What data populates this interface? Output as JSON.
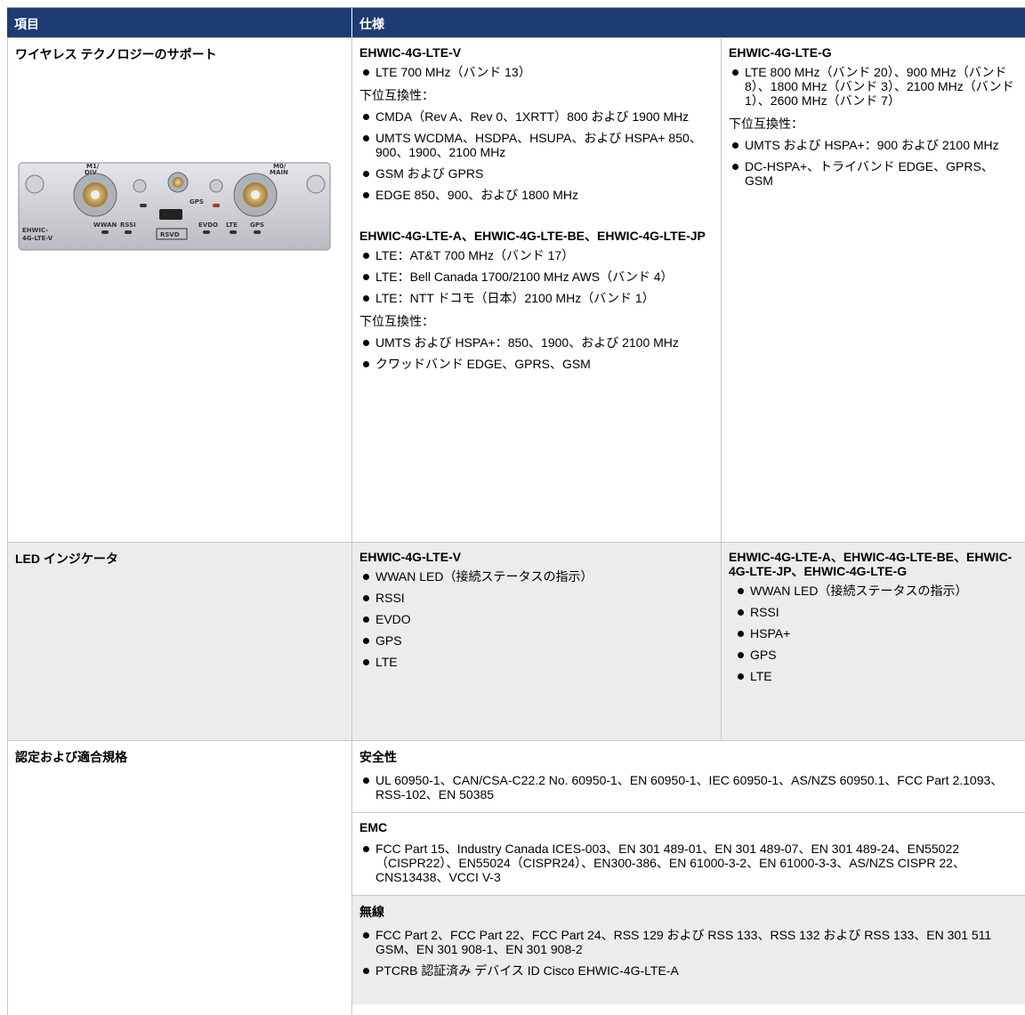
{
  "header": {
    "item": "項目",
    "spec": "仕様"
  },
  "rows": [
    {
      "item": "ワイヤレス テクノロジーのサポート",
      "image_labels": [
        "M1/",
        "DIV",
        "GPS",
        "M0/",
        "MAIN",
        "EHWIC-",
        "4G-LTE-V",
        "WWAN",
        "RSSI",
        "RSVD",
        "EVDO",
        "LTE",
        "GPS"
      ],
      "columns": [
        {
          "models": [
            {
              "name": "EHWIC-4G-LTE-V",
              "support": [
                "LTE 700 MHz（バンド 13）"
              ],
              "compat_label": "下位互換性：",
              "compat": [
                "CMDA（Rev A、Rev 0、1XRTT）800 および 1900 MHz",
                "UMTS WCDMA、HSDPA、HSUPA、および HSPA+ 850、900、1900、2100 MHz",
                "GSM および GPRS",
                "EDGE 850、900、および 1800 MHz"
              ]
            },
            {
              "name": "EHWIC-4G-LTE-A、EHWIC-4G-LTE-BE、EHWIC-4G-LTE-JP",
              "support": [
                "LTE：AT&T 700 MHz（バンド 17）",
                "LTE：Bell Canada 1700/2100 MHz AWS（バンド 4）",
                "LTE：NTT ドコモ（日本）2100 MHz（バンド 1）"
              ],
              "compat_label": "下位互換性：",
              "compat": [
                "UMTS および HSPA+：850、1900、および 2100 MHz",
                "クワッドバンド EDGE、GPRS、GSM"
              ]
            }
          ]
        },
        {
          "models": [
            {
              "name": "EHWIC-4G-LTE-G",
              "support": [
                "LTE 800 MHz（バンド 20）、900 MHz（バンド 8）、1800 MHz（バンド 3）、2100 MHz（バンド 1）、2600 MHz（バンド 7）"
              ],
              "compat_label": "下位互換性：",
              "compat": [
                "UMTS および HSPA+：900 および 2100 MHz",
                "DC-HSPA+、トライバンド EDGE、GPRS、GSM"
              ]
            }
          ]
        }
      ]
    },
    {
      "item": "LED インジケータ",
      "columns": [
        {
          "name": "EHWIC-4G-LTE-V",
          "items": [
            "WWAN LED（接続ステータスの指示）",
            "RSSI",
            "EVDO",
            "GPS",
            "LTE"
          ]
        },
        {
          "name": "EHWIC-4G-LTE-A、EHWIC-4G-LTE-BE、EHWIC-4G-LTE-JP、EHWIC-4G-LTE-G",
          "items": [
            "WWAN LED（接続ステータスの指示）",
            "RSSI",
            "HSPA+",
            "GPS",
            "LTE"
          ]
        }
      ]
    },
    {
      "item": "認定および適合規格",
      "sections": [
        {
          "title": "安全性",
          "items": [
            "UL 60950-1、CAN/CSA-C22.2 No. 60950-1、EN 60950-1、IEC 60950-1、AS/NZS 60950.1、FCC Part 2.1093、RSS-102、EN 50385"
          ]
        },
        {
          "title": "EMC",
          "items": [
            "FCC Part 15、Industry Canada ICES-003、EN 301 489-01、EN 301 489-07、EN 301 489-24、EN55022（CISPR22）、EN55024（CISPR24）、EN300-386、EN 61000-3-2、EN 61000-3-3、AS/NZS CISPR 22、CNS13438、VCCI V-3"
          ]
        },
        {
          "title": "無線",
          "items": [
            "FCC Part 2、FCC Part 22、FCC Part 24、RSS 129 および RSS 133、RSS 132 および RSS 133、EN 301 511 GSM、EN 301 908-1、EN 301 908-2",
            "PTCRB 認証済み デバイス ID Cisco EHWIC-4G-LTE-A"
          ]
        }
      ]
    }
  ]
}
